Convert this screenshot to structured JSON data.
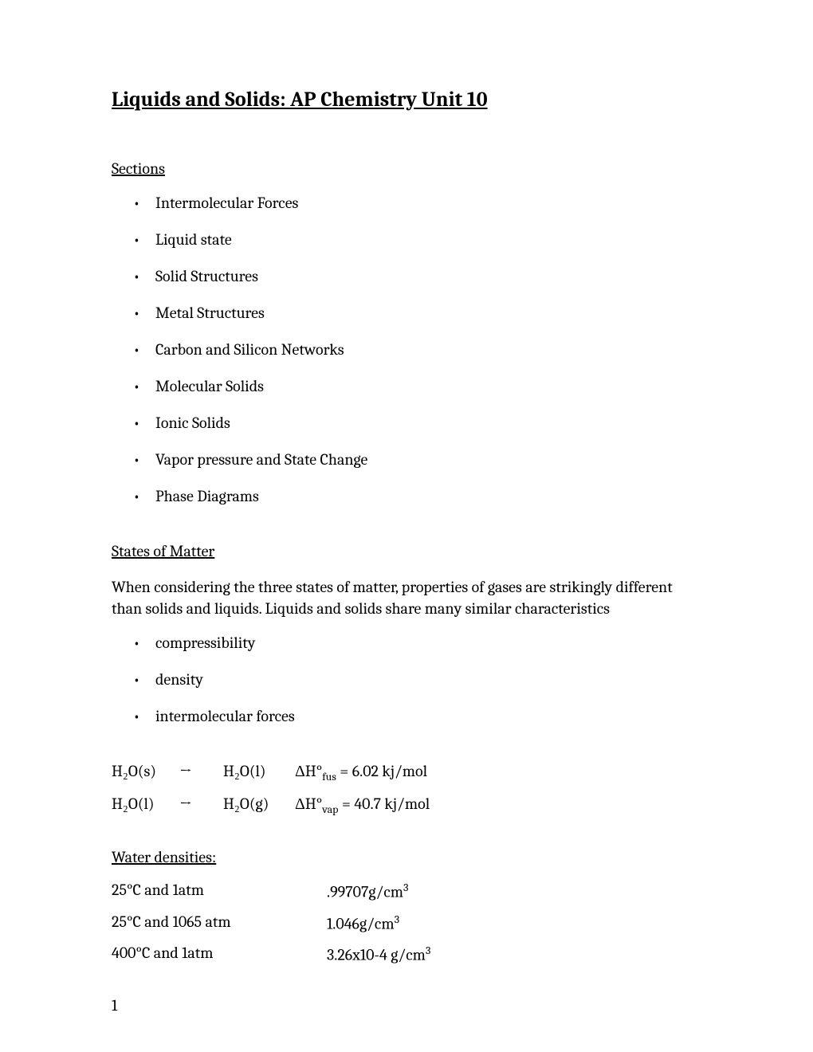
{
  "title": "Liquids and Solids:  AP Chemistry Unit 10",
  "sections_heading": "Sections",
  "sections": [
    "Intermolecular Forces",
    "Liquid state",
    "Solid Structures",
    "Metal Structures",
    "Carbon and Silicon Networks",
    "Molecular Solids",
    "Ionic Solids",
    "Vapor pressure and State Change",
    "Phase Diagrams"
  ],
  "states_heading": "States of Matter",
  "states_paragraph": "When considering the three states of matter, properties of gases are strikingly different than solids and liquids.  Liquids and solids share many similar characteristics",
  "characteristics": [
    "compressibility",
    "density",
    "intermolecular forces"
  ],
  "equations": [
    {
      "reactant_formula": "H₂O(s)",
      "arrow": "→",
      "product_formula": "H₂O(l)",
      "delta_h_label": "ΔH°",
      "delta_h_sub": "fus",
      "value": " = 6.02 kj/mol"
    },
    {
      "reactant_formula": "H₂O(l)",
      "arrow": "→",
      "product_formula": "H₂O(g)",
      "delta_h_label": "ΔH°",
      "delta_h_sub": "vap",
      "value": " = 40.7 kj/mol"
    }
  ],
  "densities_heading": "Water densities:",
  "densities": [
    {
      "condition": "25°C and 1atm",
      "value": ".99707g/cm",
      "sup": "3"
    },
    {
      "condition": "25°C and 1065 atm",
      "value": "1.046g/cm",
      "sup": "3"
    },
    {
      "condition": "400°C and 1atm",
      "value": "3.26x10-4 g/cm",
      "sup": "3"
    }
  ],
  "page_number": "1"
}
